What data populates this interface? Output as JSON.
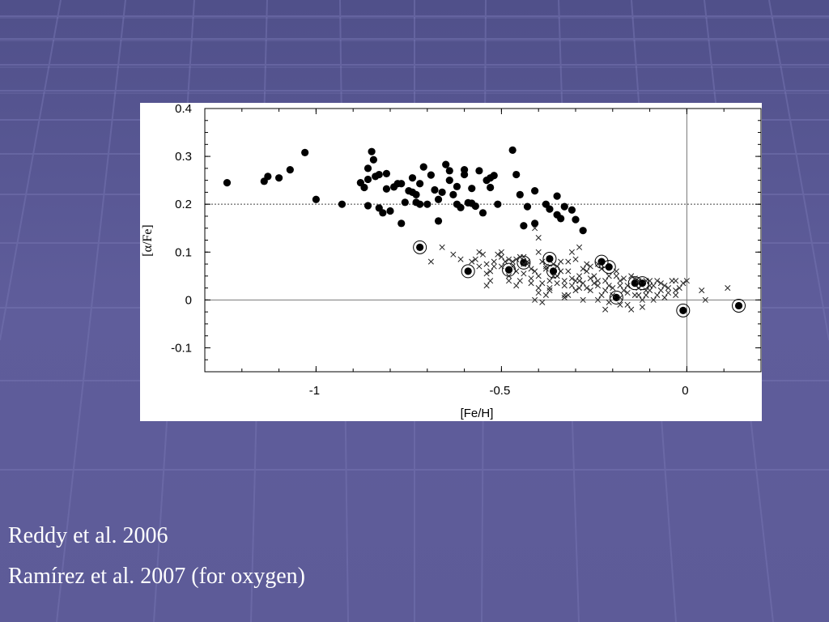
{
  "slide": {
    "background_color": "#5d5b98",
    "captions": [
      "Reddy et al. 2006",
      "Ramírez et al. 2007 (for oxygen)"
    ]
  },
  "chart_data": {
    "type": "scatter",
    "xlabel": "[Fe/H]",
    "ylabel": "[α/Fe]",
    "xlim": [
      -1.3,
      0.2
    ],
    "ylim": [
      -0.15,
      0.4
    ],
    "x_ticks": [
      -1,
      -0.5,
      0
    ],
    "x_tick_labels": [
      "-1",
      "-0.5",
      "0"
    ],
    "y_ticks": [
      -0.1,
      0,
      0.1,
      0.2,
      0.3,
      0.4
    ],
    "y_tick_labels": [
      "-0.1",
      "0",
      "0.1",
      "0.2",
      "0.3",
      "0.4"
    ],
    "reference_lines": [
      {
        "axis": "y",
        "value": 0.2,
        "style": "dotted"
      },
      {
        "axis": "y",
        "value": 0,
        "style": "solid"
      },
      {
        "axis": "x",
        "value": 0,
        "style": "solid"
      }
    ],
    "series": [
      {
        "marker": "filled-circle",
        "points": [
          [
            -1.24,
            0.245
          ],
          [
            -1.14,
            0.248
          ],
          [
            -1.13,
            0.258
          ],
          [
            -1.1,
            0.255
          ],
          [
            -1.07,
            0.272
          ],
          [
            -1.03,
            0.308
          ],
          [
            -1.0,
            0.21
          ],
          [
            -0.93,
            0.2
          ],
          [
            -0.88,
            0.245
          ],
          [
            -0.87,
            0.235
          ],
          [
            -0.86,
            0.275
          ],
          [
            -0.86,
            0.252
          ],
          [
            -0.85,
            0.31
          ],
          [
            -0.845,
            0.293
          ],
          [
            -0.84,
            0.258
          ],
          [
            -0.83,
            0.262
          ],
          [
            -0.86,
            0.197
          ],
          [
            -0.83,
            0.192
          ],
          [
            -0.82,
            0.182
          ],
          [
            -0.81,
            0.264
          ],
          [
            -0.81,
            0.232
          ],
          [
            -0.8,
            0.186
          ],
          [
            -0.79,
            0.236
          ],
          [
            -0.78,
            0.243
          ],
          [
            -0.77,
            0.243
          ],
          [
            -0.77,
            0.16
          ],
          [
            -0.76,
            0.204
          ],
          [
            -0.75,
            0.228
          ],
          [
            -0.74,
            0.255
          ],
          [
            -0.74,
            0.225
          ],
          [
            -0.73,
            0.204
          ],
          [
            -0.73,
            0.22
          ],
          [
            -0.72,
            0.243
          ],
          [
            -0.72,
            0.2
          ],
          [
            -0.71,
            0.278
          ],
          [
            -0.7,
            0.2
          ],
          [
            -0.69,
            0.261
          ],
          [
            -0.68,
            0.23
          ],
          [
            -0.67,
            0.21
          ],
          [
            -0.67,
            0.165
          ],
          [
            -0.66,
            0.225
          ],
          [
            -0.65,
            0.283
          ],
          [
            -0.64,
            0.27
          ],
          [
            -0.64,
            0.25
          ],
          [
            -0.63,
            0.22
          ],
          [
            -0.62,
            0.2
          ],
          [
            -0.62,
            0.237
          ],
          [
            -0.61,
            0.193
          ],
          [
            -0.6,
            0.272
          ],
          [
            -0.6,
            0.262
          ],
          [
            -0.59,
            0.203
          ],
          [
            -0.58,
            0.202
          ],
          [
            -0.58,
            0.233
          ],
          [
            -0.57,
            0.196
          ],
          [
            -0.56,
            0.27
          ],
          [
            -0.55,
            0.182
          ],
          [
            -0.54,
            0.25
          ],
          [
            -0.53,
            0.235
          ],
          [
            -0.53,
            0.255
          ],
          [
            -0.52,
            0.26
          ],
          [
            -0.51,
            0.2
          ],
          [
            -0.47,
            0.313
          ],
          [
            -0.46,
            0.262
          ],
          [
            -0.45,
            0.22
          ],
          [
            -0.44,
            0.155
          ],
          [
            -0.43,
            0.195
          ],
          [
            -0.41,
            0.228
          ],
          [
            -0.41,
            0.16
          ],
          [
            -0.38,
            0.2
          ],
          [
            -0.37,
            0.19
          ],
          [
            -0.35,
            0.217
          ],
          [
            -0.35,
            0.178
          ],
          [
            -0.34,
            0.17
          ],
          [
            -0.33,
            0.195
          ],
          [
            -0.31,
            0.188
          ],
          [
            -0.3,
            0.168
          ],
          [
            -0.28,
            0.145
          ],
          [
            -0.72,
            0.11
          ],
          [
            -0.59,
            0.06
          ],
          [
            -0.48,
            0.063
          ],
          [
            -0.44,
            0.078
          ],
          [
            -0.37,
            0.086
          ],
          [
            -0.36,
            0.06
          ],
          [
            -0.23,
            0.08
          ],
          [
            -0.21,
            0.069
          ],
          [
            -0.19,
            0.005
          ],
          [
            -0.14,
            0.035
          ],
          [
            -0.12,
            0.035
          ],
          [
            -0.01,
            -0.022
          ],
          [
            0.14,
            -0.012
          ]
        ]
      },
      {
        "marker": "circle-outline",
        "points": [
          [
            -0.72,
            0.11
          ],
          [
            -0.59,
            0.06
          ],
          [
            -0.48,
            0.063
          ],
          [
            -0.44,
            0.078
          ],
          [
            -0.37,
            0.086
          ],
          [
            -0.36,
            0.06
          ],
          [
            -0.23,
            0.08
          ],
          [
            -0.21,
            0.069
          ],
          [
            -0.19,
            0.005
          ],
          [
            -0.14,
            0.035
          ],
          [
            -0.12,
            0.035
          ],
          [
            -0.01,
            -0.022
          ],
          [
            0.14,
            -0.012
          ]
        ]
      },
      {
        "marker": "cross",
        "points": [
          [
            -0.66,
            0.11
          ],
          [
            -0.69,
            0.08
          ],
          [
            -0.63,
            0.095
          ],
          [
            -0.61,
            0.085
          ],
          [
            -0.57,
            0.085
          ],
          [
            -0.56,
            0.1
          ],
          [
            -0.55,
            0.095
          ],
          [
            -0.54,
            0.075
          ],
          [
            -0.53,
            0.06
          ],
          [
            -0.52,
            0.08
          ],
          [
            -0.54,
            0.03
          ],
          [
            -0.5,
            0.07
          ],
          [
            -0.49,
            0.08
          ],
          [
            -0.48,
            0.085
          ],
          [
            -0.47,
            0.07
          ],
          [
            -0.46,
            0.06
          ],
          [
            -0.45,
            0.09
          ],
          [
            -0.44,
            0.055
          ],
          [
            -0.43,
            0.08
          ],
          [
            -0.42,
            0.065
          ],
          [
            -0.42,
            0.045
          ],
          [
            -0.41,
            0.0
          ],
          [
            -0.4,
            0.05
          ],
          [
            -0.4,
            0.015
          ],
          [
            -0.39,
            0.08
          ],
          [
            -0.39,
            0.035
          ],
          [
            -0.38,
            0.07
          ],
          [
            -0.37,
            0.04
          ],
          [
            -0.37,
            0.025
          ],
          [
            -0.36,
            0.075
          ],
          [
            -0.35,
            0.05
          ],
          [
            -0.34,
            0.06
          ],
          [
            -0.33,
            0.03
          ],
          [
            -0.33,
            0.01
          ],
          [
            -0.32,
            0.06
          ],
          [
            -0.31,
            0.045
          ],
          [
            -0.3,
            0.04
          ],
          [
            -0.3,
            0.085
          ],
          [
            -0.29,
            0.025
          ],
          [
            -0.28,
            0.035
          ],
          [
            -0.27,
            0.06
          ],
          [
            -0.26,
            0.02
          ],
          [
            -0.26,
            0.045
          ],
          [
            -0.25,
            0.035
          ],
          [
            -0.24,
            0.075
          ],
          [
            -0.24,
            0.03
          ],
          [
            -0.23,
            0.01
          ],
          [
            -0.22,
            -0.02
          ],
          [
            -0.22,
            0.04
          ],
          [
            -0.21,
            -0.005
          ],
          [
            -0.2,
            0.025
          ],
          [
            -0.19,
            0.06
          ],
          [
            -0.18,
            0.04
          ],
          [
            -0.18,
            -0.01
          ],
          [
            -0.17,
            0.02
          ],
          [
            -0.16,
            0.03
          ],
          [
            -0.15,
            -0.02
          ],
          [
            -0.14,
            0.045
          ],
          [
            -0.13,
            0.01
          ],
          [
            -0.12,
            -0.015
          ],
          [
            -0.11,
            0.02
          ],
          [
            -0.1,
            0.03
          ],
          [
            -0.09,
            0.0
          ],
          [
            -0.08,
            0.04
          ],
          [
            -0.07,
            0.02
          ],
          [
            -0.06,
            0.005
          ],
          [
            -0.05,
            0.015
          ],
          [
            -0.04,
            0.04
          ],
          [
            -0.03,
            0.01
          ],
          [
            -0.02,
            0.025
          ],
          [
            -0.01,
            0.035
          ],
          [
            0.0,
            0.04
          ],
          [
            0.04,
            0.02
          ],
          [
            0.05,
            0.0
          ],
          [
            0.11,
            0.025
          ],
          [
            -0.29,
            0.11
          ],
          [
            -0.31,
            0.1
          ],
          [
            -0.4,
            0.13
          ],
          [
            -0.4,
            0.1
          ],
          [
            -0.35,
            0.07
          ],
          [
            -0.28,
            0.065
          ],
          [
            -0.27,
            0.025
          ],
          [
            -0.25,
            0.05
          ],
          [
            -0.2,
            0.01
          ],
          [
            -0.16,
            0.015
          ],
          [
            -0.41,
            0.06
          ],
          [
            -0.36,
            0.05
          ],
          [
            -0.34,
            0.08
          ],
          [
            -0.39,
            -0.005
          ],
          [
            -0.44,
            0.09
          ],
          [
            -0.52,
            0.07
          ],
          [
            -0.45,
            0.04
          ],
          [
            -0.48,
            0.05
          ],
          [
            -0.5,
            0.09
          ],
          [
            -0.58,
            0.08
          ],
          [
            -0.33,
            0.04
          ],
          [
            -0.3,
            0.02
          ],
          [
            -0.26,
            0.07
          ],
          [
            -0.24,
            0.0
          ],
          [
            -0.15,
            0.05
          ],
          [
            -0.11,
            0.04
          ],
          [
            -0.06,
            0.03
          ],
          [
            -0.03,
            0.02
          ],
          [
            -0.51,
            0.095
          ],
          [
            -0.43,
            0.075
          ],
          [
            -0.37,
            0.02
          ],
          [
            -0.29,
            0.05
          ],
          [
            -0.21,
            0.05
          ],
          [
            -0.13,
            0.025
          ],
          [
            -0.08,
            0.01
          ],
          [
            -0.46,
            0.085
          ],
          [
            -0.54,
            0.055
          ],
          [
            -0.47,
            0.08
          ],
          [
            -0.41,
            0.15
          ],
          [
            -0.44,
            0.075
          ],
          [
            -0.38,
            0.065
          ],
          [
            -0.32,
            0.08
          ],
          [
            -0.27,
            0.075
          ],
          [
            -0.18,
            0.03
          ],
          [
            -0.42,
            0.035
          ],
          [
            -0.4,
            0.025
          ],
          [
            -0.35,
            0.035
          ],
          [
            -0.31,
            0.03
          ],
          [
            -0.23,
            0.065
          ],
          [
            -0.19,
            0.05
          ],
          [
            -0.14,
            0.01
          ],
          [
            -0.12,
            0.0
          ],
          [
            -0.1,
            0.04
          ],
          [
            -0.05,
            0.025
          ],
          [
            -0.53,
            0.04
          ],
          [
            -0.56,
            0.07
          ],
          [
            -0.5,
            0.1
          ],
          [
            -0.32,
            0.01
          ],
          [
            -0.24,
            0.04
          ],
          [
            -0.22,
            0.02
          ],
          [
            -0.17,
            0.045
          ],
          [
            -0.13,
            0.04
          ],
          [
            -0.09,
            0.03
          ],
          [
            -0.48,
            0.04
          ],
          [
            -0.46,
            0.03
          ],
          [
            -0.28,
            0.0
          ],
          [
            -0.18,
            0.005
          ],
          [
            -0.1,
            0.02
          ],
          [
            -0.07,
            0.035
          ],
          [
            -0.03,
            0.04
          ],
          [
            -0.38,
            0.01
          ],
          [
            -0.33,
            0.005
          ],
          [
            -0.29,
            0.04
          ],
          [
            -0.21,
            0.03
          ],
          [
            -0.16,
            -0.01
          ],
          [
            -0.11,
            0.01
          ]
        ]
      }
    ]
  }
}
